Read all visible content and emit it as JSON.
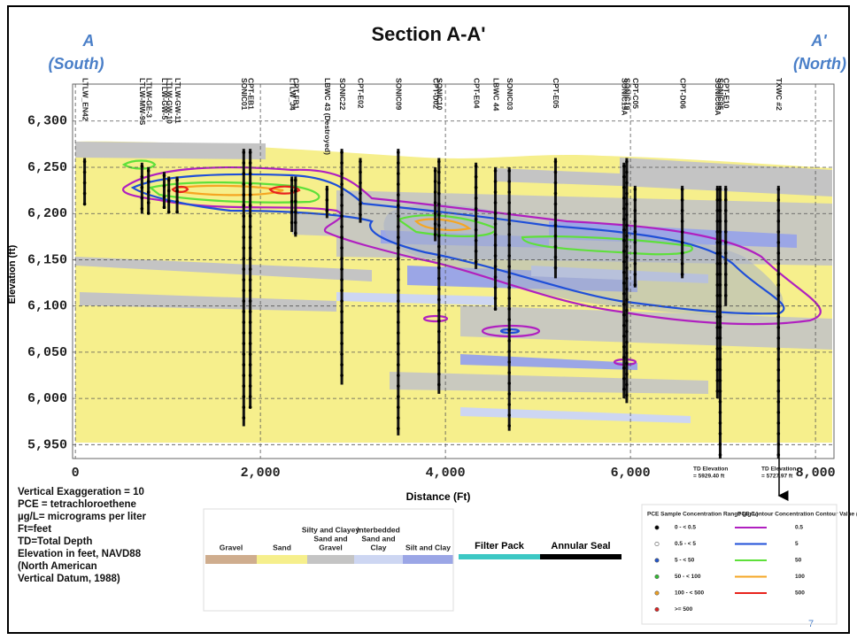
{
  "chart_data": {
    "type": "cross-section",
    "title": "Section A-A'",
    "left_label": [
      "A",
      "(South)"
    ],
    "right_label": [
      "A'",
      "(North)"
    ],
    "xlabel": "Distance (Ft)",
    "ylabel": "Elevation (ft)",
    "xlim": [
      -30,
      8200
    ],
    "ylim": [
      5935,
      6340
    ],
    "xticks": [
      0,
      {
        "value": 2000,
        "label": "2,000"
      },
      {
        "value": 4000,
        "label": "4,000"
      },
      {
        "value": 6000,
        "label": "6,000"
      },
      {
        "value": 8000,
        "label": "8,000"
      }
    ],
    "yticks": [
      {
        "value": 5950,
        "label": "5,950"
      },
      {
        "value": 6000,
        "label": "6,000"
      },
      {
        "value": 6050,
        "label": "6,050"
      },
      {
        "value": 6100,
        "label": "6,100"
      },
      {
        "value": 6150,
        "label": "6,150"
      },
      {
        "value": 6200,
        "label": "6,200"
      },
      {
        "value": 6250,
        "label": "6,250"
      },
      {
        "value": 6300,
        "label": "6,300"
      }
    ],
    "grid": true,
    "wells": [
      {
        "name": "LTLW_EN42",
        "x": 100,
        "top": 6260,
        "bottom": 6210
      },
      {
        "name": "LTLW-MW-9S",
        "x": 720,
        "top": 6255,
        "bottom": 6200
      },
      {
        "name": "LTLW-GE-3",
        "x": 790,
        "top": 6250,
        "bottom": 6200
      },
      {
        "name": "LTLW-GW-5",
        "x": 960,
        "top": 6245,
        "bottom": 6205
      },
      {
        "name": "LTLW-GW-10",
        "x": 1010,
        "top": 6240,
        "bottom": 6200
      },
      {
        "name": "LTLW-GW-11",
        "x": 1100,
        "top": 6240,
        "bottom": 6200
      },
      {
        "name": "SONIC01",
        "x": 1820,
        "top": 6270,
        "bottom": 5970
      },
      {
        "name": "CPT-EB1",
        "x": 1890,
        "top": 6270,
        "bottom": 5990
      },
      {
        "name": "LTLW_J4",
        "x": 2340,
        "top": 6240,
        "bottom": 6180
      },
      {
        "name": "CPT-FB1",
        "x": 2380,
        "top": 6240,
        "bottom": 6175
      },
      {
        "name": "LBWC 43 (Destroyed)",
        "x": 2720,
        "top": 6230,
        "bottom": 6195
      },
      {
        "name": "SONIC22",
        "x": 2880,
        "top": 6270,
        "bottom": 6015
      },
      {
        "name": "CPT-E02",
        "x": 3080,
        "top": 6260,
        "bottom": 6190
      },
      {
        "name": "SONIC09",
        "x": 3490,
        "top": 6270,
        "bottom": 5960
      },
      {
        "name": "CPT-D02",
        "x": 3890,
        "top": 6250,
        "bottom": 6170
      },
      {
        "name": "SONIC10",
        "x": 3930,
        "top": 6260,
        "bottom": 6005
      },
      {
        "name": "CPT-E04",
        "x": 4330,
        "top": 6255,
        "bottom": 6140
      },
      {
        "name": "LBWC 44",
        "x": 4540,
        "top": 6250,
        "bottom": 6095
      },
      {
        "name": "SONIC03",
        "x": 4690,
        "top": 6250,
        "bottom": 5965
      },
      {
        "name": "CPT-E05",
        "x": 5190,
        "top": 6260,
        "bottom": 6130
      },
      {
        "name": "SONIC19A",
        "x": 5930,
        "top": 6255,
        "bottom": 6000
      },
      {
        "name": "SONIC19",
        "x": 5960,
        "top": 6260,
        "bottom": 5995
      },
      {
        "name": "CPT-C05",
        "x": 6050,
        "top": 6230,
        "bottom": 6120
      },
      {
        "name": "CPT-D06",
        "x": 6560,
        "top": 6230,
        "bottom": 6130
      },
      {
        "name": "SONIC05A",
        "x": 6940,
        "top": 6230,
        "bottom": 6000
      },
      {
        "name": "SONIC05",
        "x": 6970,
        "top": 6230,
        "bottom": 5929.4
      },
      {
        "name": "CPT-E10",
        "x": 7030,
        "top": 6230,
        "bottom": 6100
      },
      {
        "name": "TXWC #2",
        "x": 7600,
        "top": 6230,
        "bottom": 5727.97
      }
    ],
    "annotations": [
      [
        "TD Elevation",
        "= 5929.40 ft"
      ],
      [
        "TD Elevation",
        "= 5727.97 ft"
      ]
    ],
    "notes": [
      "Vertical Exaggeration = 10",
      "PCE = tetrachloroethene",
      "µg/L= micrograms per liter",
      "Ft=feet",
      "TD=Total Depth",
      "Elevation in feet, NAVD88",
      "(North American",
      "Vertical Datum, 1988)"
    ],
    "lithology_legend": [
      {
        "label": [
          "Gravel"
        ],
        "color": "#cfad8e"
      },
      {
        "label": [
          "Sand"
        ],
        "color": "#f6ef8c"
      },
      {
        "label": [
          "Silty and Clayey",
          "Sand and",
          "Gravel"
        ],
        "color": "#c4c4c4"
      },
      {
        "label": [
          "Interbedded",
          "Sand and",
          "Clay"
        ],
        "color": "#cdd6f2"
      },
      {
        "label": [
          "Silt and Clay"
        ],
        "color": "#9ba6e6"
      }
    ],
    "well_legend": [
      {
        "label": "Filter Pack",
        "color": "#3cc8c4"
      },
      {
        "label": "Annular Seal",
        "color": "#000000"
      }
    ],
    "sample_legend_title": "PCE Sample Concentration Range (µg/L)",
    "sample_legend": [
      {
        "label": "0 - < 0.5",
        "color": "#000000"
      },
      {
        "label": "0.5 - < 5",
        "color": "#ffffff"
      },
      {
        "label": "5 - < 50",
        "color": "#2255cc"
      },
      {
        "label": "50 - < 100",
        "color": "#33bb33"
      },
      {
        "label": "100 - < 500",
        "color": "#f0a020"
      },
      {
        "label": ">= 500",
        "color": "#dd2222"
      }
    ],
    "contour_legend_title": "PCE Contour Concentration Contour Value (µg/L)",
    "contour_legend": [
      {
        "label": "0.5",
        "color": "#b020c0"
      },
      {
        "label": "5",
        "color": "#1f4fd8"
      },
      {
        "label": "50",
        "color": "#5ee03a"
      },
      {
        "label": "100",
        "color": "#f5a623"
      },
      {
        "label": "500",
        "color": "#e8231c"
      }
    ],
    "page_number": "7"
  }
}
